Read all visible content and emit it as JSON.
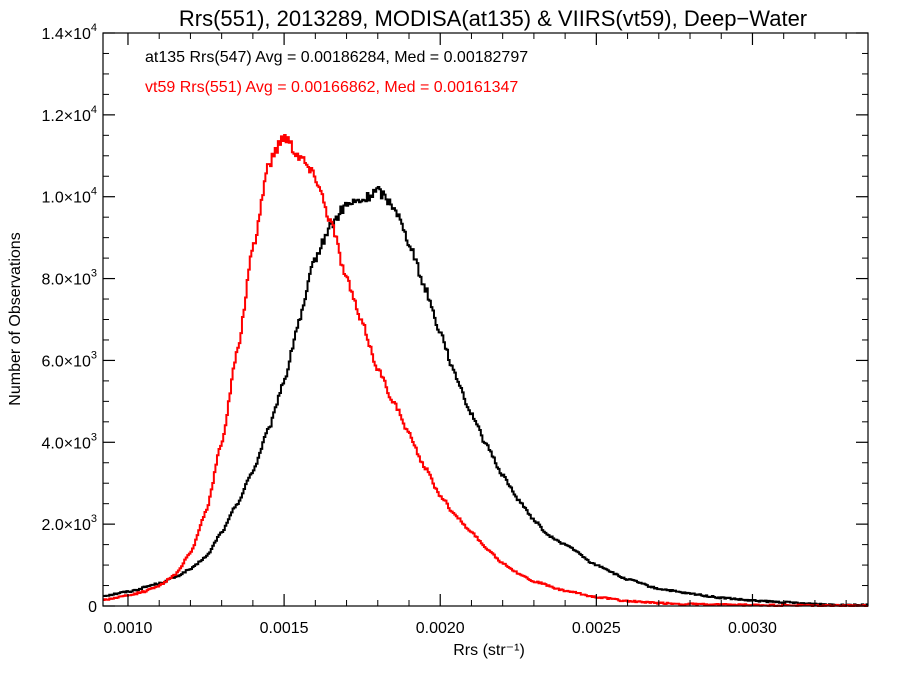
{
  "chart_data": {
    "type": "line",
    "title": "Rrs(551), 2013289, MODISA(at135) & VIIRS(vt59), Deep−Water",
    "xlabel": "Rrs (str⁻¹)",
    "ylabel": "Number of Observations",
    "xlim": [
      0.00092,
      0.00337
    ],
    "ylim": [
      0,
      14000
    ],
    "x_ticks": [
      0.001,
      0.0015,
      0.002,
      0.0025,
      0.003
    ],
    "x_tick_labels": [
      "0.0010",
      "0.0015",
      "0.0020",
      "0.0025",
      "0.0030"
    ],
    "y_ticks": [
      0,
      2000,
      4000,
      6000,
      8000,
      10000,
      12000,
      14000
    ],
    "y_tick_labels": [
      {
        "mant": "0",
        "exp": ""
      },
      {
        "mant": "2.0×10",
        "exp": "3"
      },
      {
        "mant": "4.0×10",
        "exp": "3"
      },
      {
        "mant": "6.0×10",
        "exp": "3"
      },
      {
        "mant": "8.0×10",
        "exp": "3"
      },
      {
        "mant": "1.0×10",
        "exp": "4"
      },
      {
        "mant": "1.2×10",
        "exp": "4"
      },
      {
        "mant": "1.4×10",
        "exp": "4"
      }
    ],
    "grid": false,
    "legend_position": "top-left",
    "series": [
      {
        "name": "at135 Rrs(547) Avg = 0.00186284, Med = 0.00182797",
        "color": "#000000",
        "x": [
          0.00092,
          0.001,
          0.0011,
          0.00115,
          0.0012,
          0.00125,
          0.0013,
          0.00135,
          0.0014,
          0.00145,
          0.0015,
          0.00155,
          0.0016,
          0.00165,
          0.0017,
          0.00175,
          0.0018,
          0.00185,
          0.0019,
          0.00195,
          0.002,
          0.00205,
          0.0021,
          0.00215,
          0.0022,
          0.00225,
          0.0023,
          0.00235,
          0.0024,
          0.0025,
          0.0026,
          0.0027,
          0.0028,
          0.0029,
          0.003,
          0.0031,
          0.0032,
          0.0033,
          0.00337
        ],
        "y": [
          250,
          350,
          550,
          700,
          900,
          1200,
          1800,
          2500,
          3300,
          4300,
          5500,
          7000,
          8500,
          9300,
          9800,
          9900,
          10150,
          9800,
          8900,
          7800,
          6700,
          5600,
          4700,
          3900,
          3200,
          2600,
          2100,
          1700,
          1500,
          1000,
          650,
          420,
          300,
          200,
          130,
          90,
          50,
          30,
          20
        ]
      },
      {
        "name": "vt59 Rrs(551) Avg = 0.00166862, Med = 0.00161347",
        "color": "#ff0000",
        "x": [
          0.00092,
          0.001,
          0.00105,
          0.0011,
          0.00115,
          0.0012,
          0.00125,
          0.0013,
          0.00135,
          0.0014,
          0.00145,
          0.0015,
          0.00155,
          0.0016,
          0.00165,
          0.0017,
          0.00175,
          0.0018,
          0.00185,
          0.0019,
          0.00195,
          0.002,
          0.00205,
          0.0021,
          0.00215,
          0.0022,
          0.00225,
          0.0023,
          0.0024,
          0.0025,
          0.0026,
          0.0027,
          0.0028,
          0.0029,
          0.003,
          0.0031,
          0.0032,
          0.0033,
          0.00337
        ],
        "y": [
          150,
          250,
          350,
          500,
          750,
          1300,
          2300,
          4000,
          6200,
          8700,
          10800,
          11500,
          11000,
          10500,
          9400,
          8000,
          6900,
          5800,
          5000,
          4200,
          3400,
          2700,
          2200,
          1800,
          1400,
          1050,
          800,
          600,
          370,
          220,
          120,
          70,
          45,
          30,
          20,
          15,
          10,
          8,
          5
        ]
      }
    ]
  }
}
